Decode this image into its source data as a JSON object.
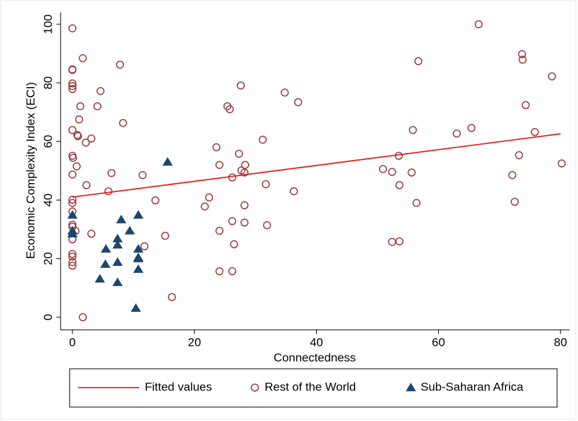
{
  "chart_data": {
    "type": "scatter",
    "xlabel": "Connectedness",
    "ylabel": "Economic Complexity Index (ECI)",
    "xlim": [
      -1.94,
      81.5
    ],
    "ylim": [
      -4.3,
      104
    ],
    "xticks": [
      0,
      20,
      40,
      60,
      80
    ],
    "yticks": [
      0,
      20,
      40,
      60,
      80,
      100
    ],
    "grid": false,
    "legend": "bottom",
    "series": [
      {
        "name": "Fitted values",
        "type": "line",
        "color": "#e8201e",
        "x": [
          0,
          80
        ],
        "values": [
          41,
          62.6
        ]
      },
      {
        "name": "Rest of the World",
        "type": "scatter",
        "marker": "circle",
        "color": "#9b3a3a",
        "x": [
          0,
          0,
          0,
          0,
          0,
          0,
          1.7,
          4.6,
          7.8,
          1.3,
          4.1,
          1.1,
          8.3,
          0,
          0.8,
          0.9,
          3.1,
          2.2,
          0,
          0.1,
          0.7,
          0,
          6.4,
          11.5,
          2.3,
          5.9,
          0,
          0,
          13.6,
          0,
          0,
          0,
          0.5,
          3.1,
          0,
          0,
          0,
          0,
          0,
          11.8,
          15.2,
          16.3,
          1.7,
          23.6,
          24.1,
          22.4,
          21.7,
          24.1,
          24.1,
          26.2,
          25.4,
          25.8,
          27.6,
          27.3,
          27.7,
          28.3,
          28.2,
          26.2,
          28.2,
          26.2,
          28.2,
          26.5,
          31.2,
          31.7,
          31.9,
          34.8,
          37.0,
          36.3,
          50.9,
          52.4,
          53.5,
          53.6,
          55.6,
          55.8,
          52.4,
          53.6,
          56.4,
          56.7,
          63.0,
          65.4,
          66.6,
          73.7,
          73.8,
          73.2,
          74.3,
          75.8,
          72.1,
          72.5,
          78.6,
          80.2
        ],
        "values": [
          98.6,
          84.6,
          84.4,
          79.8,
          78.9,
          77.9,
          88.4,
          77.2,
          86.2,
          72.0,
          72.0,
          67.5,
          66.3,
          63.9,
          62.2,
          61.8,
          61.0,
          59.6,
          55.1,
          54.4,
          51.5,
          48.7,
          49.2,
          48.5,
          45.1,
          43.0,
          40.1,
          39.0,
          39.9,
          36.1,
          31.6,
          30.9,
          29.5,
          28.5,
          26.6,
          21.6,
          20.7,
          18.8,
          17.6,
          24.2,
          27.8,
          6.9,
          0,
          58.0,
          52.0,
          40.9,
          37.8,
          29.5,
          15.7,
          15.7,
          72.0,
          71.0,
          79.1,
          55.8,
          50.1,
          52.0,
          49.4,
          47.7,
          38.2,
          32.8,
          32.3,
          24.9,
          60.6,
          45.4,
          31.4,
          76.7,
          73.4,
          43.0,
          50.6,
          49.6,
          55.1,
          45.1,
          49.4,
          63.9,
          25.7,
          25.9,
          39.0,
          87.4,
          62.7,
          64.6,
          100,
          89.8,
          87.9,
          55.3,
          72.4,
          63.2,
          48.5,
          39.4,
          82.2,
          52.5
        ]
      },
      {
        "name": "Sub-Saharan Africa",
        "type": "scatter",
        "marker": "triangle",
        "color": "#1a476f",
        "x": [
          0,
          0,
          0,
          15.6,
          8.0,
          10.8,
          7.4,
          7.4,
          9.4,
          5.5,
          10.8,
          10.8,
          10.8,
          5.4,
          7.4,
          10.8,
          4.5,
          7.4,
          10.4
        ],
        "values": [
          34.9,
          28.5,
          29.5,
          53.0,
          33.3,
          34.9,
          26.8,
          24.7,
          29.5,
          23.3,
          23.3,
          20.4,
          20.0,
          18.1,
          18.8,
          16.4,
          13.1,
          11.9,
          3.1
        ]
      }
    ]
  }
}
